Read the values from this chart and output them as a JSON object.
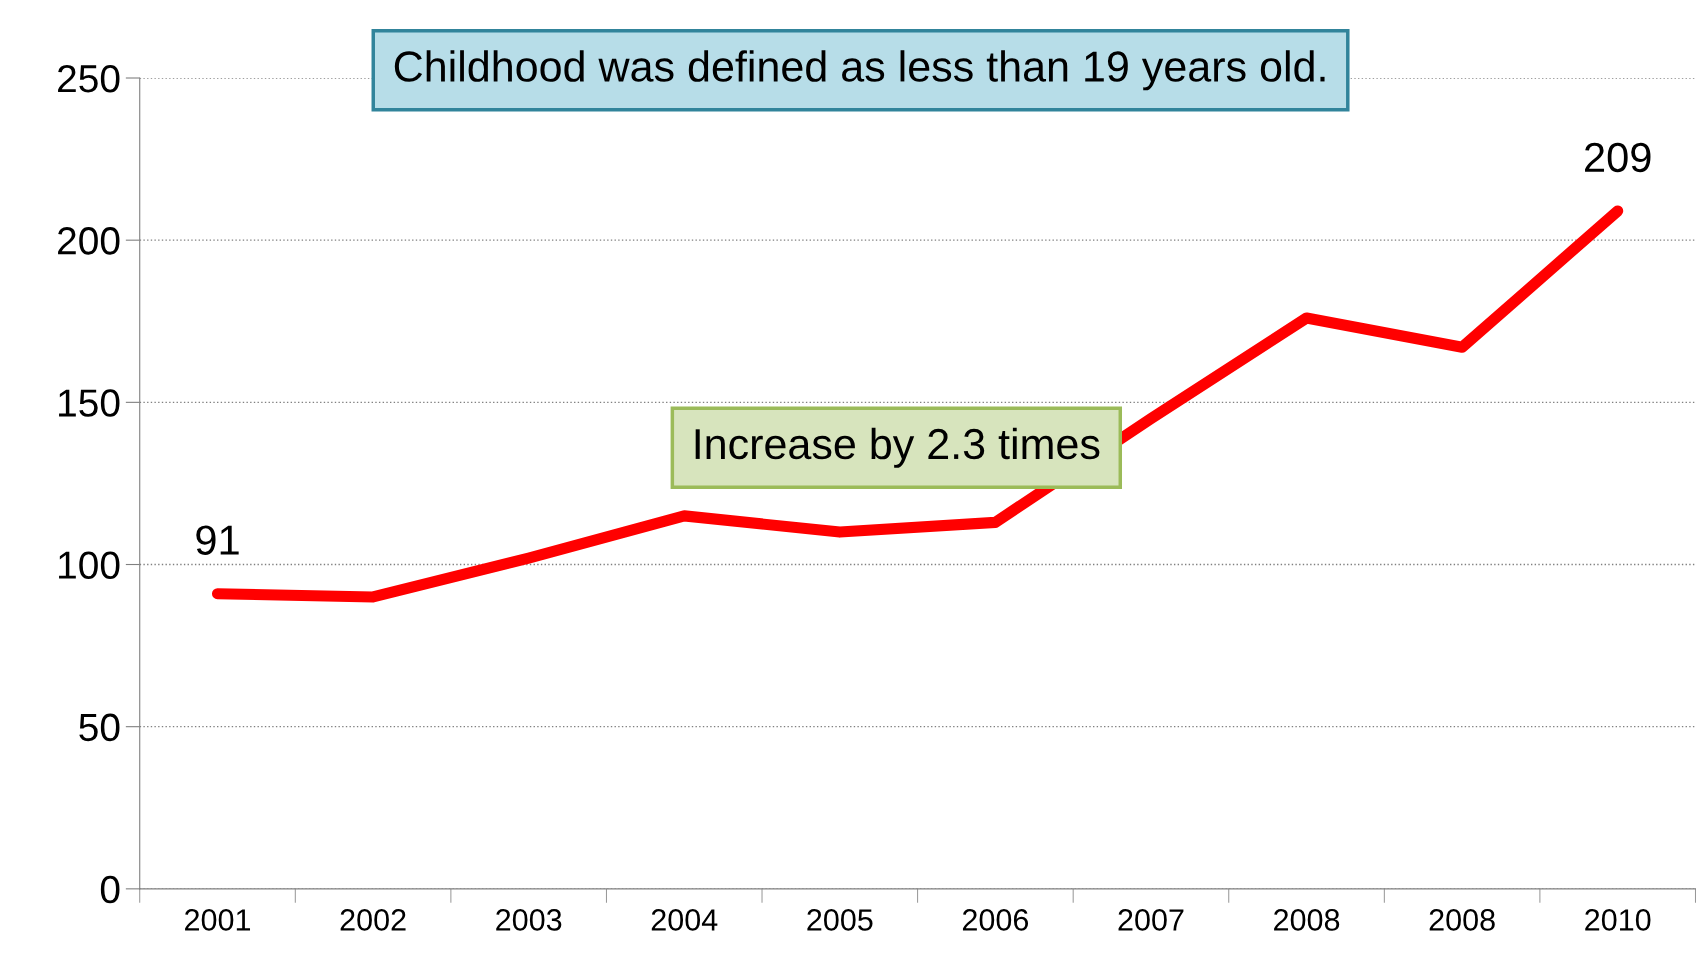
{
  "chart_data": {
    "type": "line",
    "categories": [
      "2001",
      "2002",
      "2003",
      "2004",
      "2005",
      "2006",
      "2007",
      "2008",
      "2008",
      "2010"
    ],
    "series": [
      {
        "color": "#ff0000",
        "values": [
          91,
          90,
          102,
          115,
          110,
          113,
          145,
          176,
          167,
          209
        ]
      }
    ],
    "value_labels": [
      "91",
      null,
      null,
      null,
      null,
      null,
      null,
      null,
      null,
      "209"
    ],
    "ylim": [
      0,
      250
    ],
    "yticks": [
      0,
      50,
      100,
      150,
      200,
      250
    ],
    "grid": "y",
    "marker": "none",
    "line_style": "solid",
    "annotations": [
      "Childhood was defined as less than 19 years old.",
      "Increase by 2.3 times"
    ]
  }
}
